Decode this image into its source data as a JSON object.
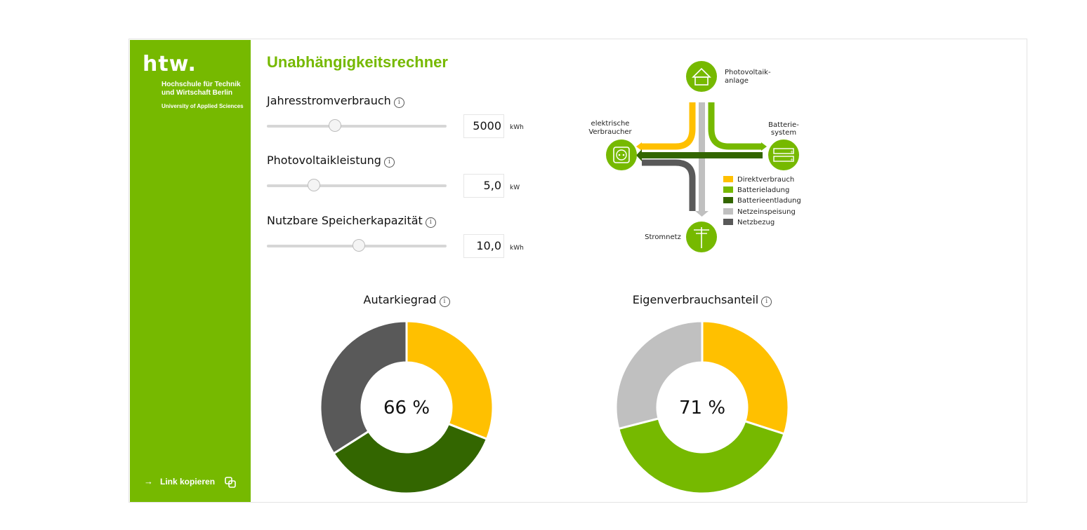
{
  "sidebar": {
    "logo": "htw.",
    "institution_lines": [
      "Hochschule für Technik",
      "und Wirtschaft Berlin"
    ],
    "subtitle": "University of Applied Sciences",
    "copy_link": "Link kopieren"
  },
  "app": {
    "title": "Unabhängigkeitsrechner"
  },
  "fields": [
    {
      "label": "Jahresstromverbrauch",
      "value": "5000",
      "unit": "kWh",
      "slider_fraction": 0.38
    },
    {
      "label": "Photovoltaikleistung",
      "value": "5,0",
      "unit": "kW",
      "slider_fraction": 0.26
    },
    {
      "label": "Nutzbare Speicherkapazität",
      "value": "10,0",
      "unit": "kWh",
      "slider_fraction": 0.51
    }
  ],
  "diagram": {
    "nodes": {
      "pv": [
        "Photovoltaik-",
        "anlage"
      ],
      "consumer": [
        "elektrische",
        "Verbraucher"
      ],
      "battery": [
        "Batterie-",
        "system"
      ],
      "grid": [
        "Stromnetz"
      ]
    },
    "legend": [
      {
        "label": "Direktverbrauch",
        "color": "#ffc000"
      },
      {
        "label": "Batterieladung",
        "color": "#76b900"
      },
      {
        "label": "Batterieentladung",
        "color": "#336600"
      },
      {
        "label": "Netzeinspeisung",
        "color": "#c0c0c0"
      },
      {
        "label": "Netzbezug",
        "color": "#595959"
      }
    ]
  },
  "chart_data": [
    {
      "type": "pie",
      "title": "Autarkiegrad",
      "center_label": "66 %",
      "slices": [
        {
          "name": "Direktverbrauch",
          "value": 31,
          "color": "#ffc000"
        },
        {
          "name": "Batterieentladung",
          "value": 35,
          "color": "#336600"
        },
        {
          "name": "Netzbezug",
          "value": 34,
          "color": "#595959"
        }
      ]
    },
    {
      "type": "pie",
      "title": "Eigenverbrauchsanteil",
      "center_label": "71 %",
      "slices": [
        {
          "name": "Direktverbrauch",
          "value": 30,
          "color": "#ffc000"
        },
        {
          "name": "Batterieladung",
          "value": 41,
          "color": "#76b900"
        },
        {
          "name": "Netzeinspeisung",
          "value": 29,
          "color": "#c0c0c0"
        }
      ]
    }
  ]
}
